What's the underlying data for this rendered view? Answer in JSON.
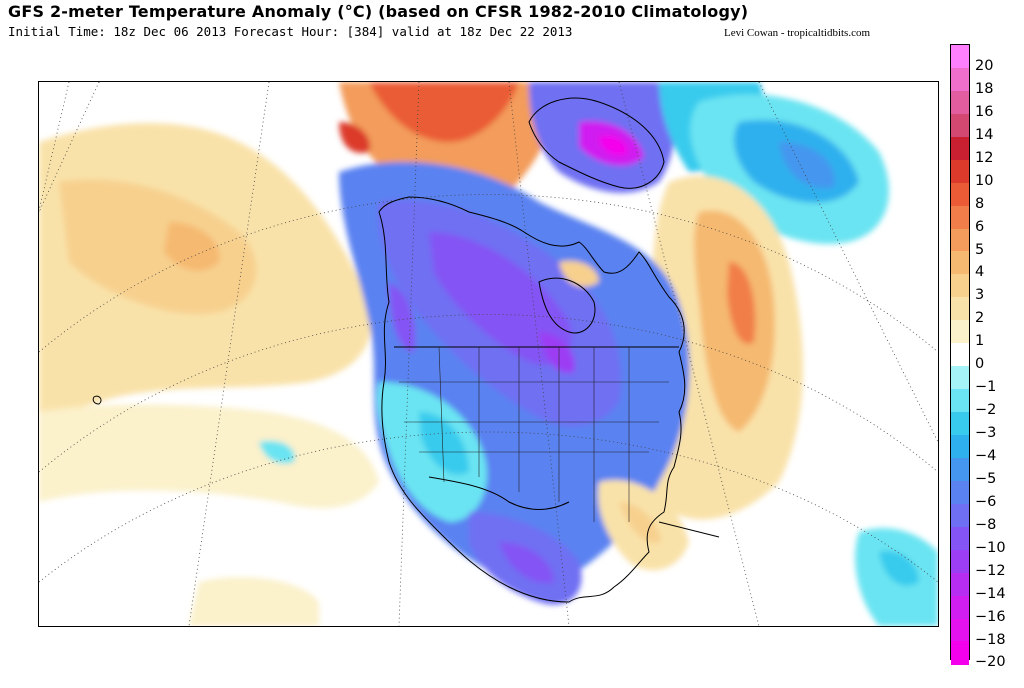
{
  "header": {
    "title": "GFS 2-meter Temperature Anomaly (°C) (based on CFSR 1982-2010 Climatology)",
    "subtitle": "Initial Time: 18z Dec 06 2013 Forecast Hour: [384] valid at 18z Dec 22 2013",
    "credit": "Levi Cowan - tropicaltidbits.com"
  },
  "legend": {
    "unit": "°C",
    "levels": [
      {
        "label": "20",
        "color": "#ff80ff"
      },
      {
        "label": "18",
        "color": "#f06fcc"
      },
      {
        "label": "16",
        "color": "#e25da0"
      },
      {
        "label": "14",
        "color": "#d24870"
      },
      {
        "label": "12",
        "color": "#c82030"
      },
      {
        "label": "10",
        "color": "#dc3a2a"
      },
      {
        "label": "8",
        "color": "#ea5b36"
      },
      {
        "label": "6",
        "color": "#f17e4a"
      },
      {
        "label": "5",
        "color": "#f39c5b"
      },
      {
        "label": "4",
        "color": "#f5b971"
      },
      {
        "label": "3",
        "color": "#f7d08e"
      },
      {
        "label": "2",
        "color": "#f9e2a9"
      },
      {
        "label": "1",
        "color": "#fbf1cb"
      },
      {
        "label": "0",
        "color": "#ffffff"
      },
      {
        "label": "−1",
        "color": "#a6f3f7"
      },
      {
        "label": "−2",
        "color": "#6ae4f2"
      },
      {
        "label": "−3",
        "color": "#38cbee"
      },
      {
        "label": "−4",
        "color": "#2fb0ee"
      },
      {
        "label": "−5",
        "color": "#4596ef"
      },
      {
        "label": "−6",
        "color": "#5a82f1"
      },
      {
        "label": "−8",
        "color": "#6f6ff3"
      },
      {
        "label": "−10",
        "color": "#8455f4"
      },
      {
        "label": "−12",
        "color": "#9c3ef4"
      },
      {
        "label": "−14",
        "color": "#b82df2"
      },
      {
        "label": "−16",
        "color": "#d01ef0"
      },
      {
        "label": "−18",
        "color": "#e412ee"
      },
      {
        "label": "−20",
        "color": "#f500ec"
      }
    ]
  },
  "map": {
    "region": "North America",
    "field": "2-meter temperature anomaly",
    "colors": {
      "land_line": "#000000",
      "grid_line": "#444444",
      "state_line": "#222222"
    }
  }
}
